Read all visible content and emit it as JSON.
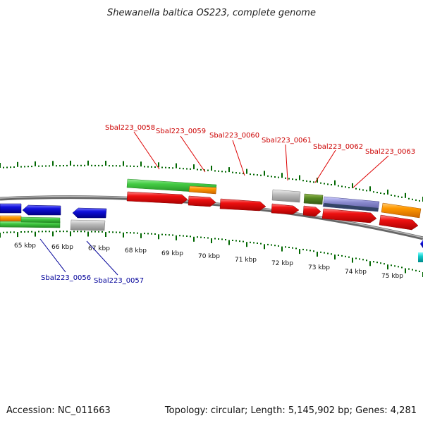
{
  "title": "Shewanella baltica OS223, complete genome",
  "footer": {
    "accession": "Accession: NC_011663",
    "summary": "Topology: circular; Length: 5,145,902 bp; Genes: 4,281"
  },
  "colors": {
    "red": "#ee1111",
    "blue": "#1111dd",
    "green": "#44cc44",
    "orange": "#ff9900",
    "gray": "#bbbbbb",
    "olive": "#558822",
    "cyan": "#11cccc",
    "purple": "#8888cc",
    "tick": "#006600"
  },
  "kbp_labels": [
    "65 kbp",
    "66 kbp",
    "67 kbp",
    "68 kbp",
    "69 kbp",
    "70 kbp",
    "71 kbp",
    "72 kbp",
    "73 kbp",
    "74 kbp",
    "75 kbp"
  ],
  "gene_labels_top": [
    "Sbal223_0058",
    "Sbal223_0059",
    "Sbal223_0060",
    "Sbal223_0061",
    "Sbal223_0062",
    "Sbal223_0063"
  ],
  "gene_labels_bottom": [
    "Sbal223_0056",
    "Sbal223_0057"
  ]
}
